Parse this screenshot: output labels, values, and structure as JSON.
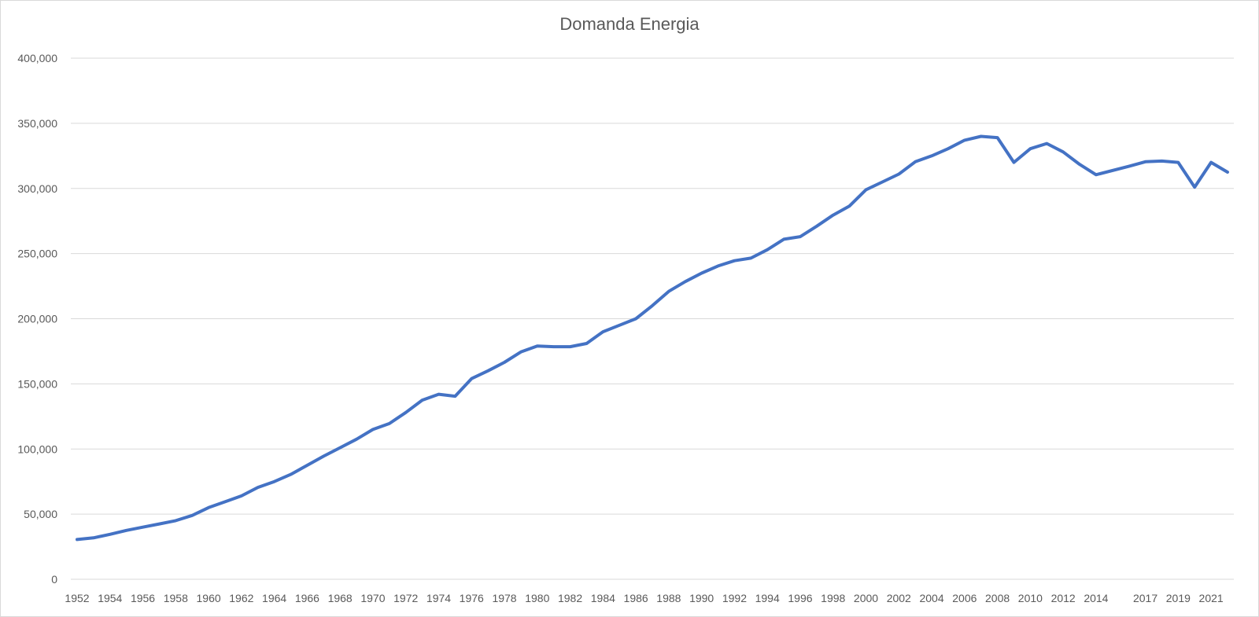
{
  "chart_data": {
    "type": "line",
    "title": "Domanda Energia",
    "xlabel": "",
    "ylabel": "",
    "ylim": [
      0,
      400000
    ],
    "grid": true,
    "legend": "none",
    "y_tick_labels": [
      "0",
      "50,000",
      "100,000",
      "150,000",
      "200,000",
      "250,000",
      "300,000",
      "350,000",
      "400,000"
    ],
    "x_tick_labels": [
      "1952",
      "1954",
      "1956",
      "1958",
      "1960",
      "1962",
      "1964",
      "1966",
      "1968",
      "1970",
      "1972",
      "1974",
      "1976",
      "1978",
      "1980",
      "1982",
      "1984",
      "1986",
      "1988",
      "1990",
      "1992",
      "1994",
      "1996",
      "1998",
      "2000",
      "2002",
      "2004",
      "2006",
      "2008",
      "2010",
      "2012",
      "2014",
      "2017",
      "2019",
      "2021"
    ],
    "x": [
      1952,
      1953,
      1954,
      1955,
      1956,
      1957,
      1958,
      1959,
      1960,
      1961,
      1962,
      1963,
      1964,
      1965,
      1966,
      1967,
      1968,
      1969,
      1970,
      1971,
      1972,
      1973,
      1974,
      1975,
      1976,
      1977,
      1978,
      1979,
      1980,
      1981,
      1982,
      1983,
      1984,
      1985,
      1986,
      1987,
      1988,
      1989,
      1990,
      1991,
      1992,
      1993,
      1994,
      1995,
      1996,
      1997,
      1998,
      1999,
      2000,
      2001,
      2002,
      2003,
      2004,
      2005,
      2006,
      2007,
      2008,
      2009,
      2010,
      2011,
      2012,
      2013,
      2014,
      2016,
      2017,
      2018,
      2019,
      2020,
      2021,
      2022
    ],
    "series": [
      {
        "color": "#4472c4",
        "values": [
          30500,
          31800,
          34500,
          37500,
          40000,
          42500,
          45000,
          49000,
          55000,
          59500,
          64000,
          70500,
          75000,
          80500,
          87500,
          94500,
          101000,
          107500,
          115000,
          119500,
          128000,
          137500,
          142000,
          140500,
          154000,
          160000,
          166500,
          174500,
          179000,
          178500,
          178500,
          181000,
          190000,
          195000,
          200000,
          210000,
          221000,
          228500,
          235000,
          240500,
          244500,
          246500,
          253000,
          261000,
          263000,
          271000,
          279500,
          286500,
          299000,
          305000,
          311000,
          320500,
          325000,
          330500,
          337000,
          340000,
          339000,
          320000,
          330500,
          334500,
          328000,
          318500,
          310500,
          317000,
          320500,
          321000,
          320000,
          301000,
          320000,
          312500
        ]
      }
    ]
  }
}
